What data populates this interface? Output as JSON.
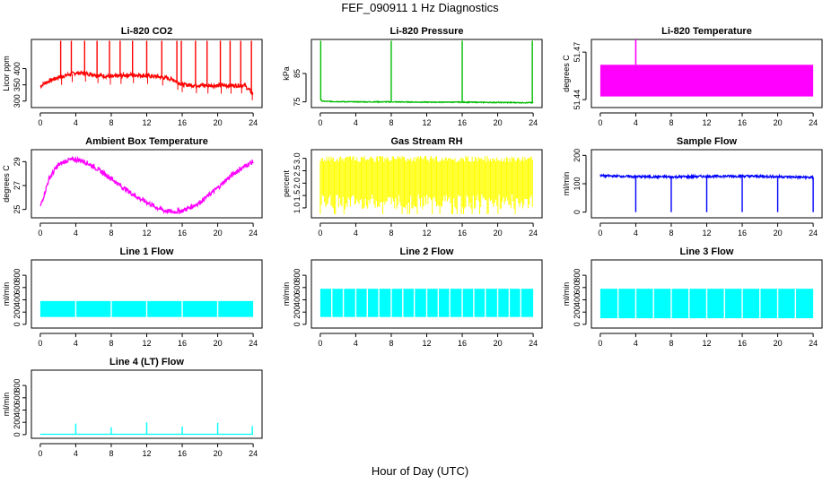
{
  "figure": {
    "title": "FEF_090911  1 Hz Diagnostics",
    "xlabel": "Hour of Day (UTC)"
  },
  "chart_data": [
    {
      "type": "line",
      "title": "Li-820 CO2",
      "ylabel": "Licor ppm",
      "color": "#ff0000",
      "x_ticks": [
        0,
        4,
        8,
        12,
        16,
        20,
        24
      ],
      "x_tick_labels": [
        "0",
        "4",
        "8",
        "12",
        "16",
        "20",
        "24"
      ],
      "ylim": [
        280,
        490
      ],
      "y_ticks": [
        300,
        350,
        400
      ],
      "y_tick_labels": [
        "300",
        "350",
        "400"
      ],
      "x": [
        0,
        0.5,
        1,
        2,
        3,
        4,
        5,
        6,
        7,
        8,
        9,
        10,
        11,
        12,
        13,
        14,
        15,
        16,
        17,
        18,
        19,
        20,
        21,
        22,
        23,
        24
      ],
      "y": [
        345,
        355,
        362,
        373,
        380,
        387,
        385,
        382,
        378,
        375,
        378,
        381,
        380,
        378,
        376,
        372,
        366,
        351,
        349,
        349,
        348,
        348,
        348,
        348,
        349,
        322
      ],
      "spikes": [
        2.3,
        3.5,
        5.0,
        6.4,
        7.8,
        9.0,
        10.4,
        12.0,
        13.7,
        15.4,
        15.9,
        17.5,
        18.8,
        20.3,
        21.4,
        22.6,
        23.8
      ],
      "noise": 6
    },
    {
      "type": "line",
      "title": "Li-820 Pressure",
      "ylabel": "kPa",
      "color": "#00bb00",
      "x_ticks": [
        0,
        4,
        8,
        12,
        16,
        20,
        24
      ],
      "x_tick_labels": [
        "0",
        "4",
        "8",
        "12",
        "16",
        "20",
        "24"
      ],
      "ylim": [
        73,
        97
      ],
      "y_ticks": [
        75,
        85
      ],
      "y_tick_labels": [
        "75",
        "85"
      ],
      "x": [
        0,
        0.3,
        4,
        8,
        12,
        16,
        20,
        24
      ],
      "y": [
        75.8,
        75.2,
        75.0,
        75.0,
        74.9,
        74.9,
        74.8,
        74.7
      ],
      "spikes": [
        0.05,
        8.0,
        16.0,
        23.9
      ],
      "noise": 0.15
    },
    {
      "type": "area",
      "title": "Li-820 Temperature",
      "ylabel": "degrees C",
      "color": "#ff00ff",
      "x_ticks": [
        0,
        4,
        8,
        12,
        16,
        20,
        24
      ],
      "x_tick_labels": [
        "0",
        "4",
        "8",
        "12",
        "16",
        "20",
        "24"
      ],
      "ylim": [
        51.435,
        51.478
      ],
      "y_ticks": [
        51.44,
        51.47
      ],
      "y_tick_labels": [
        "51.44",
        "51.47"
      ],
      "band_low": 51.442,
      "band_high": 51.462,
      "spikes": [
        4.0
      ],
      "noise": 0
    },
    {
      "type": "line",
      "title": "Ambient Box Temperature",
      "ylabel": "degrees C",
      "color": "#ff00ff",
      "x_ticks": [
        0,
        4,
        8,
        12,
        16,
        20,
        24
      ],
      "x_tick_labels": [
        "0",
        "4",
        "8",
        "12",
        "16",
        "20",
        "24"
      ],
      "ylim": [
        24.3,
        30.0
      ],
      "y_ticks": [
        25,
        27,
        29
      ],
      "y_tick_labels": [
        "25",
        "27",
        "29"
      ],
      "x": [
        0,
        1,
        2,
        3,
        4,
        5,
        6,
        7,
        8,
        9,
        10,
        11,
        12,
        13,
        14,
        15,
        16,
        17,
        18,
        19,
        20,
        21,
        22,
        23,
        24
      ],
      "y": [
        25.2,
        27.6,
        28.7,
        29.1,
        29.2,
        29.0,
        28.6,
        28.1,
        27.6,
        27.0,
        26.5,
        26.0,
        25.6,
        25.2,
        24.9,
        24.8,
        24.9,
        25.2,
        25.6,
        26.2,
        26.8,
        27.5,
        28.1,
        28.6,
        29.0
      ],
      "noise": 0.2
    },
    {
      "type": "line",
      "title": "Gas Stream RH",
      "ylabel": "percent",
      "color": "#ffff00",
      "x_ticks": [
        0,
        4,
        8,
        12,
        16,
        20,
        24
      ],
      "x_tick_labels": [
        "0",
        "4",
        "8",
        "12",
        "16",
        "20",
        "24"
      ],
      "ylim": [
        0.6,
        3.35
      ],
      "y_ticks": [
        1.0,
        1.5,
        2.0,
        2.5,
        3.0
      ],
      "y_tick_labels": [
        "1.0",
        "1.5",
        "2.0",
        "2.5",
        "3.0"
      ],
      "band_low": 0.95,
      "band_high": 3.1,
      "dense": true
    },
    {
      "type": "line",
      "title": "Sample Flow",
      "ylabel": "ml/min",
      "color": "#0000ff",
      "x_ticks": [
        0,
        4,
        8,
        12,
        16,
        20,
        24
      ],
      "x_tick_labels": [
        "0",
        "4",
        "8",
        "12",
        "16",
        "20",
        "24"
      ],
      "ylim": [
        -20,
        220
      ],
      "y_ticks": [
        0,
        100,
        200
      ],
      "y_tick_labels": [
        "0",
        "100",
        "200"
      ],
      "x": [
        0,
        0.2,
        4,
        8,
        12,
        16,
        20,
        24
      ],
      "y": [
        130,
        128,
        125,
        124,
        126,
        127,
        125,
        122
      ],
      "dips": [
        4.0,
        8.0,
        12.0,
        16.0,
        20.0,
        24.0
      ],
      "dip_value": 0,
      "noise": 4
    },
    {
      "type": "area",
      "title": "Line 1 Flow",
      "ylabel": "ml/min",
      "color": "#00ffff",
      "x_ticks": [
        0,
        4,
        8,
        12,
        16,
        20,
        24
      ],
      "x_tick_labels": [
        "0",
        "4",
        "8",
        "12",
        "16",
        "20",
        "24"
      ],
      "ylim": [
        -60,
        1050
      ],
      "y_ticks": [
        0,
        200,
        400,
        600,
        800
      ],
      "y_tick_labels": [
        "0",
        "200",
        "400",
        "600",
        "800"
      ],
      "band_low": 120,
      "band_high": 380,
      "gaps": [
        4.0,
        8.0,
        12.0,
        16.0,
        20.0
      ]
    },
    {
      "type": "area",
      "title": "Line 2 Flow",
      "ylabel": "ml/min",
      "color": "#00ffff",
      "x_ticks": [
        0,
        4,
        8,
        12,
        16,
        20,
        24
      ],
      "x_tick_labels": [
        "0",
        "4",
        "8",
        "12",
        "16",
        "20",
        "24"
      ],
      "ylim": [
        -60,
        1050
      ],
      "y_ticks": [
        0,
        200,
        400,
        600,
        800
      ],
      "y_tick_labels": [
        "0",
        "200",
        "400",
        "600",
        "800"
      ],
      "band_low": 120,
      "band_high": 580,
      "gaps": [
        1.3,
        2.6,
        4.0,
        5.3,
        6.6,
        8.0,
        9.3,
        10.6,
        12.0,
        13.3,
        14.6,
        16.0,
        17.3,
        18.6,
        20.0,
        21.3,
        22.6
      ]
    },
    {
      "type": "area",
      "title": "Line 3 Flow",
      "ylabel": "ml/min",
      "color": "#00ffff",
      "x_ticks": [
        0,
        4,
        8,
        12,
        16,
        20,
        24
      ],
      "x_tick_labels": [
        "0",
        "4",
        "8",
        "12",
        "16",
        "20",
        "24"
      ],
      "ylim": [
        -60,
        1050
      ],
      "y_ticks": [
        0,
        200,
        400,
        600,
        800
      ],
      "y_tick_labels": [
        "0",
        "200",
        "400",
        "600",
        "800"
      ],
      "band_low": 100,
      "band_high": 580,
      "gaps": [
        2.0,
        4.0,
        6.0,
        8.0,
        10.0,
        12.0,
        14.0,
        16.0,
        18.0,
        20.0,
        22.0
      ]
    },
    {
      "type": "line",
      "title": "Line 4 (LT) Flow",
      "ylabel": "ml/min",
      "color": "#00ffff",
      "x_ticks": [
        0,
        4,
        8,
        12,
        16,
        20,
        24
      ],
      "x_tick_labels": [
        "0",
        "4",
        "8",
        "12",
        "16",
        "20",
        "24"
      ],
      "ylim": [
        -60,
        1050
      ],
      "y_ticks": [
        0,
        200,
        400,
        600,
        800
      ],
      "y_tick_labels": [
        "0",
        "200",
        "400",
        "600",
        "800"
      ],
      "x": [
        0,
        24
      ],
      "y": [
        5,
        5
      ],
      "spikes": [
        4.0,
        8.0,
        12.0,
        16.0,
        20.0,
        23.9
      ],
      "spike_values": [
        180,
        120,
        200,
        130,
        190,
        140
      ],
      "noise": 0
    }
  ]
}
